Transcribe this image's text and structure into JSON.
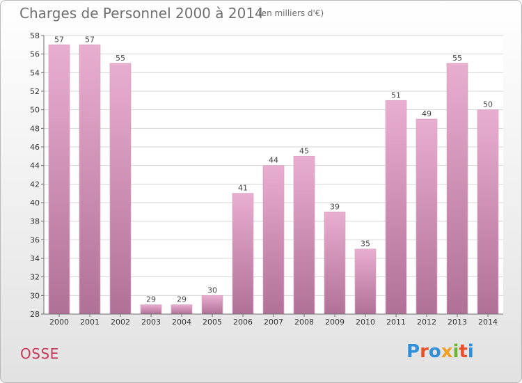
{
  "header": {
    "title": "Charges de Personnel 2000 à 2014",
    "unit": "(en milliers d'€)"
  },
  "footer": {
    "city": "OSSE",
    "brand": "Proxiti"
  },
  "colors": {
    "bar_top": "#e8aed0",
    "bar_bottom": "#b07196",
    "axis": "#6f6f6f",
    "grid": "#d6d6d6",
    "city": "#c83a5a",
    "brand_letters": [
      "#2f8fd8",
      "#e8502a",
      "#2f8fd8",
      "#f0a020",
      "#6bb52a",
      "#e8502a",
      "#2f8fd8"
    ]
  },
  "chart_data": {
    "type": "bar",
    "categories": [
      "2000",
      "2001",
      "2002",
      "2003",
      "2004",
      "2005",
      "2006",
      "2007",
      "2008",
      "2009",
      "2010",
      "2011",
      "2012",
      "2013",
      "2014"
    ],
    "values": [
      57,
      57,
      55,
      29,
      29,
      30,
      41,
      44,
      45,
      39,
      35,
      51,
      49,
      55,
      50
    ],
    "ylim": [
      28,
      58
    ],
    "yticks": [
      28,
      30,
      32,
      34,
      36,
      38,
      40,
      42,
      44,
      46,
      48,
      50,
      52,
      54,
      56,
      58
    ],
    "grid": true,
    "data_labels": true
  }
}
